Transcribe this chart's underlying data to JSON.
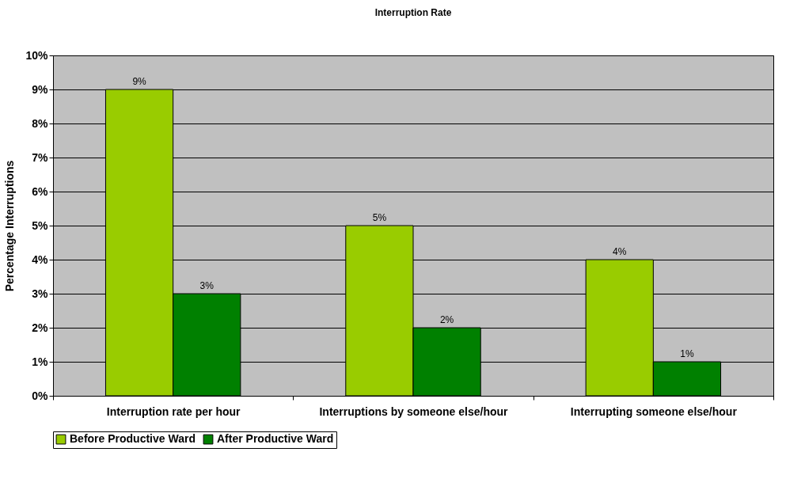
{
  "chart_data": {
    "type": "bar",
    "title": "Interruption Rate",
    "ylabel": "Percentage Interruptions",
    "categories": [
      "Interruption rate per hour",
      "Interruptions by someone else/hour",
      "Interrupting someone else/hour"
    ],
    "series": [
      {
        "name": "Before Productive Ward",
        "color": "#99cc00",
        "values": [
          9,
          5,
          4
        ],
        "value_labels": [
          "9%",
          "5%",
          "4%"
        ]
      },
      {
        "name": "After Productive Ward",
        "color": "#008000",
        "values": [
          3,
          2,
          1
        ],
        "value_labels": [
          "3%",
          "2%",
          "1%"
        ]
      }
    ],
    "ylim": [
      0,
      10
    ],
    "yticks": [
      {
        "value": 0,
        "label": "0%"
      },
      {
        "value": 1,
        "label": "1%"
      },
      {
        "value": 2,
        "label": "2%"
      },
      {
        "value": 3,
        "label": "3%"
      },
      {
        "value": 4,
        "label": "4%"
      },
      {
        "value": 5,
        "label": "5%"
      },
      {
        "value": 6,
        "label": "6%"
      },
      {
        "value": 7,
        "label": "7%"
      },
      {
        "value": 8,
        "label": "8%"
      },
      {
        "value": 9,
        "label": "9%"
      },
      {
        "value": 10,
        "label": "10%"
      }
    ],
    "grid": "y",
    "legend": "bottom"
  }
}
